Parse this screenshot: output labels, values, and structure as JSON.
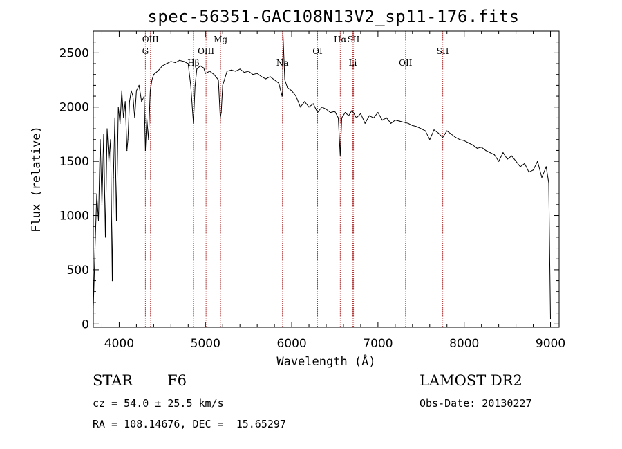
{
  "chart_data": {
    "type": "line",
    "title": "spec-56351-GAC108N13V2_sp11-176.fits",
    "xlabel": "Wavelength (Å)",
    "ylabel": "Flux (relative)",
    "xlim": [
      3700,
      9100
    ],
    "ylim": [
      -30,
      2700
    ],
    "xticks": [
      "4000",
      "5000",
      "6000",
      "7000",
      "8000",
      "9000"
    ],
    "yticks": [
      "0",
      "500",
      "1000",
      "1500",
      "2000",
      "2500"
    ],
    "series": [
      {
        "x": [
          3700,
          3720,
          3740,
          3760,
          3780,
          3800,
          3820,
          3840,
          3860,
          3880,
          3900,
          3920,
          3933,
          3950,
          3968,
          3990,
          4010,
          4030,
          4050,
          4070,
          4090,
          4101,
          4120,
          4140,
          4160,
          4180,
          4200,
          4230,
          4260,
          4290,
          4304,
          4320,
          4340,
          4360,
          4380,
          4400,
          4430,
          4470,
          4500,
          4550,
          4600,
          4650,
          4700,
          4750,
          4800,
          4830,
          4861,
          4880,
          4900,
          4940,
          4980,
          5000,
          5050,
          5100,
          5150,
          5172,
          5183,
          5200,
          5250,
          5300,
          5350,
          5400,
          5450,
          5500,
          5550,
          5600,
          5650,
          5700,
          5750,
          5800,
          5850,
          5889,
          5896,
          5900,
          5920,
          5950,
          6000,
          6050,
          6100,
          6150,
          6200,
          6250,
          6300,
          6350,
          6400,
          6450,
          6500,
          6540,
          6563,
          6580,
          6620,
          6660,
          6700,
          6750,
          6800,
          6850,
          6900,
          6950,
          7000,
          7050,
          7100,
          7150,
          7200,
          7250,
          7300,
          7350,
          7400,
          7450,
          7500,
          7550,
          7600,
          7650,
          7700,
          7750,
          7800,
          7850,
          7900,
          7950,
          8000,
          8050,
          8100,
          8150,
          8200,
          8250,
          8300,
          8350,
          8400,
          8450,
          8500,
          8550,
          8600,
          8650,
          8700,
          8750,
          8800,
          8850,
          8900,
          8950,
          8980,
          9000
        ],
        "y": [
          150,
          700,
          1200,
          950,
          1700,
          1100,
          1750,
          800,
          1800,
          1500,
          1700,
          400,
          1350,
          1900,
          950,
          2000,
          1850,
          2150,
          1900,
          2050,
          1600,
          1700,
          2050,
          2150,
          2100,
          1900,
          2150,
          2200,
          2050,
          2100,
          1600,
          1900,
          1700,
          2150,
          2250,
          2300,
          2320,
          2350,
          2380,
          2400,
          2420,
          2410,
          2430,
          2420,
          2400,
          2200,
          1850,
          2200,
          2350,
          2380,
          2360,
          2310,
          2330,
          2300,
          2250,
          1900,
          1950,
          2200,
          2330,
          2340,
          2330,
          2350,
          2320,
          2330,
          2300,
          2310,
          2280,
          2260,
          2280,
          2250,
          2220,
          2100,
          2150,
          2650,
          2250,
          2180,
          2150,
          2100,
          2000,
          2050,
          2000,
          2030,
          1950,
          2000,
          1980,
          1950,
          1960,
          1900,
          1550,
          1900,
          1950,
          1920,
          1970,
          1900,
          1940,
          1850,
          1920,
          1900,
          1950,
          1880,
          1900,
          1850,
          1880,
          1870,
          1860,
          1850,
          1830,
          1820,
          1800,
          1780,
          1700,
          1790,
          1760,
          1720,
          1780,
          1750,
          1720,
          1700,
          1690,
          1670,
          1650,
          1620,
          1630,
          1600,
          1580,
          1560,
          1500,
          1580,
          1520,
          1550,
          1500,
          1450,
          1480,
          1400,
          1420,
          1500,
          1350,
          1450,
          1300,
          50
        ]
      }
    ],
    "lines": [
      {
        "name": "G",
        "x": 4304,
        "row": 2
      },
      {
        "name": "OIII",
        "x": 4363,
        "row": 1
      },
      {
        "name": "Hβ",
        "x": 4861,
        "row": 3
      },
      {
        "name": "OIII",
        "x": 5007,
        "row": 2
      },
      {
        "name": "Mg",
        "x": 5175,
        "row": 1
      },
      {
        "name": "Na",
        "x": 5893,
        "row": 3
      },
      {
        "name": "OI",
        "x": 6300,
        "row": 2
      },
      {
        "name": "Hα",
        "x": 6563,
        "row": 1
      },
      {
        "name": "SII",
        "x": 6717,
        "row": 1
      },
      {
        "name": "Li",
        "x": 6708,
        "row": 3
      },
      {
        "name": "OII",
        "x": 7320,
        "row": 3
      },
      {
        "name": "SII",
        "x": 7751,
        "row": 2
      }
    ],
    "line_color": "#b03030",
    "grid": false,
    "legend": "none"
  },
  "info": {
    "class": "STAR",
    "subclass": "F6",
    "cz": "cz = 54.0 ± 25.5 km/s",
    "radec": "RA = 108.14676, DEC =  15.65297",
    "survey": "LAMOST DR2",
    "obsdate": "Obs-Date: 20130227"
  }
}
